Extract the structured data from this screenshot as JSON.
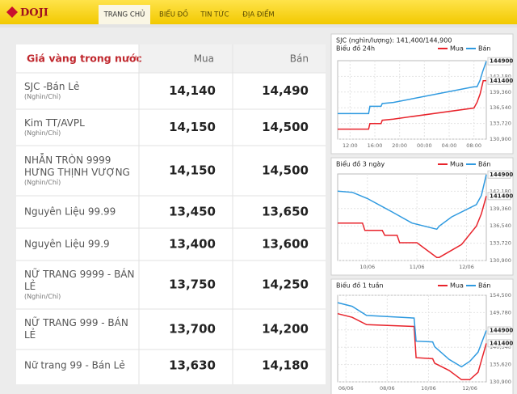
{
  "header": {
    "logo": "DOJI",
    "nav": [
      "TRANG CHỦ",
      "BIỂU ĐỒ",
      "TIN TỨC",
      "ĐỊA ĐIỂM"
    ],
    "active": 0
  },
  "table": {
    "title": "Giá vàng trong nước",
    "columns": [
      "Mua",
      "Bán"
    ],
    "rows": [
      {
        "name": [
          "SJC -Bán Lẻ"
        ],
        "unit": "(Nghìn/Chỉ)",
        "buy": "14,140",
        "sell": "14,490"
      },
      {
        "name": [
          "Kim TT/AVPL"
        ],
        "unit": "(Nghìn/Chỉ)",
        "buy": "14,150",
        "sell": "14,500"
      },
      {
        "name": [
          "NHẪN TRÒN 9999",
          "HƯNG THỊNH VƯỢNG"
        ],
        "unit": "(Nghìn/Chỉ)",
        "buy": "14,150",
        "sell": "14,500"
      },
      {
        "name": [
          "Nguyên Liệu 99.99"
        ],
        "buy": "13,450",
        "sell": "13,650"
      },
      {
        "name": [
          "Nguyên Liệu 99.9"
        ],
        "buy": "13,400",
        "sell": "13,600"
      },
      {
        "name": [
          "NỮ TRANG 9999 - BÁN",
          "LẺ"
        ],
        "unit": "(Nghìn/Chỉ)",
        "buy": "13,750",
        "sell": "14,250"
      },
      {
        "name": [
          "NỮ TRANG 999 - BÁN",
          "LẺ"
        ],
        "buy": "13,700",
        "sell": "14,200"
      },
      {
        "name": [
          "Nữ trang 99 - Bán Lẻ"
        ],
        "buy": "13,630",
        "sell": "14,180"
      }
    ]
  },
  "charts": [
    {
      "type": "line",
      "title": "SJC (nghìn/lượng): 141,400/144,900",
      "subtitle": "Biểu đồ 24h",
      "xlim": [
        -2,
        22
      ],
      "xticks": [
        {
          "value": 0,
          "label": "12:00"
        },
        {
          "value": 4,
          "label": "16:00"
        },
        {
          "value": 8,
          "label": "20:00"
        },
        {
          "value": 12,
          "label": "00:00"
        },
        {
          "value": 16,
          "label": "04:00"
        },
        {
          "value": 20,
          "label": "08:00"
        }
      ],
      "ylim": [
        130900,
        145000
      ],
      "yticks": [
        {
          "value": 130900,
          "label": "130,900"
        },
        {
          "value": 133720,
          "label": "133,720"
        },
        {
          "value": 136540,
          "label": "136,540"
        },
        {
          "value": 139360,
          "label": "139,360"
        },
        {
          "value": 142180,
          "label": "142,180"
        }
      ],
      "value_markers": [
        144900,
        141400
      ],
      "series": [
        {
          "name": "Mua",
          "color": "#e8232b",
          "x": [
            -2,
            3,
            3.2,
            5,
            5.2,
            7,
            20,
            20.5,
            21,
            21.5,
            22
          ],
          "values": [
            132700,
            132700,
            133700,
            133700,
            134300,
            134500,
            136500,
            137500,
            139000,
            141400,
            141400
          ]
        },
        {
          "name": "Bán",
          "color": "#2f9ae0",
          "x": [
            -2,
            3,
            3.2,
            5,
            5.2,
            7,
            20,
            20.5,
            21,
            21.4,
            22
          ],
          "values": [
            135500,
            135500,
            136800,
            136800,
            137300,
            137500,
            140300,
            140300,
            141500,
            143000,
            144900
          ]
        }
      ]
    },
    {
      "type": "line",
      "title": "Biểu đồ 3 ngày",
      "xlim": [
        -0.6,
        2.4
      ],
      "xticks": [
        {
          "value": 0,
          "label": "10/06"
        },
        {
          "value": 1,
          "label": "11/06"
        },
        {
          "value": 2,
          "label": "12/06"
        }
      ],
      "ylim": [
        130900,
        145000
      ],
      "yticks": [
        {
          "value": 130900,
          "label": "130,900"
        },
        {
          "value": 133720,
          "label": "133,720"
        },
        {
          "value": 136540,
          "label": "136,540"
        },
        {
          "value": 139360,
          "label": "139,360"
        },
        {
          "value": 142180,
          "label": "142,180"
        }
      ],
      "value_markers": [
        144900,
        141400
      ],
      "series": [
        {
          "name": "Mua",
          "color": "#e8232b",
          "x": [
            -0.6,
            -0.1,
            -0.05,
            0.3,
            0.35,
            0.6,
            0.65,
            1.0,
            1.4,
            1.45,
            1.9,
            2.2,
            2.3,
            2.4
          ],
          "values": [
            137000,
            137000,
            135800,
            135800,
            135000,
            135000,
            133800,
            133800,
            131400,
            131400,
            133500,
            136500,
            138500,
            141400
          ]
        },
        {
          "name": "Bán",
          "color": "#2f9ae0",
          "x": [
            -0.6,
            -0.3,
            0,
            0.5,
            0.9,
            1.4,
            1.45,
            1.7,
            2.2,
            2.3,
            2.4
          ],
          "values": [
            142200,
            142000,
            141000,
            138800,
            137000,
            136000,
            136500,
            138000,
            140000,
            141500,
            144900
          ]
        }
      ]
    },
    {
      "type": "line",
      "title": "Biểu đồ 1 tuần",
      "xlim": [
        5.6,
        12.8
      ],
      "xticks": [
        {
          "value": 6,
          "label": "06/06"
        },
        {
          "value": 8,
          "label": "08/06"
        },
        {
          "value": 10,
          "label": "10/06"
        },
        {
          "value": 12,
          "label": "12/06"
        }
      ],
      "ylim": [
        130900,
        154500
      ],
      "yticks": [
        {
          "value": 130900,
          "label": "130,900"
        },
        {
          "value": 135620,
          "label": "135,620"
        },
        {
          "value": 140340,
          "label": "140,340"
        },
        {
          "value": 145060,
          "label": "145,060"
        },
        {
          "value": 149780,
          "label": "149,780"
        },
        {
          "value": 154500,
          "label": "154,500"
        }
      ],
      "value_markers": [
        144900,
        141400
      ],
      "series": [
        {
          "name": "Mua",
          "color": "#e8232b",
          "x": [
            5.6,
            6.3,
            7,
            9.3,
            9.4,
            10.2,
            10.3,
            11,
            11.6,
            12,
            12.4,
            12.8
          ],
          "values": [
            149500,
            148500,
            146500,
            146000,
            137500,
            137200,
            136000,
            134000,
            131500,
            131500,
            133500,
            141400
          ]
        },
        {
          "name": "Bán",
          "color": "#2f9ae0",
          "x": [
            5.6,
            6.3,
            7,
            9.3,
            9.4,
            10.2,
            10.3,
            11,
            11.6,
            12,
            12.4,
            12.8
          ],
          "values": [
            152500,
            151500,
            149000,
            148300,
            142000,
            141800,
            140500,
            137000,
            135000,
            136500,
            139000,
            144900
          ]
        }
      ]
    }
  ]
}
